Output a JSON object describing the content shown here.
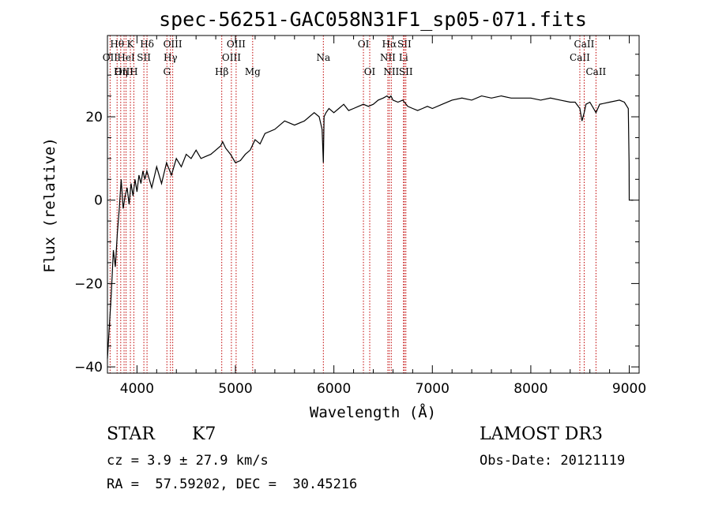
{
  "chart_data": {
    "type": "line",
    "title": "spec-56251-GAC058N31F1_sp05-071.fits",
    "xlabel": "Wavelength (Å)",
    "ylabel": "Flux (relative)",
    "xlim": [
      3700,
      9100
    ],
    "ylim": [
      -41.5,
      39.5
    ],
    "x_ticks": [
      {
        "value": 4000,
        "label": "4000"
      },
      {
        "value": 5000,
        "label": "5000"
      },
      {
        "value": 6000,
        "label": "6000"
      },
      {
        "value": 7000,
        "label": "7000"
      },
      {
        "value": 8000,
        "label": "8000"
      },
      {
        "value": 9000,
        "label": "9000"
      }
    ],
    "y_ticks": [
      {
        "value": 20,
        "label": "20"
      },
      {
        "value": 0,
        "label": "0"
      },
      {
        "value": -20,
        "label": "−20"
      },
      {
        "value": -40,
        "label": "−40"
      }
    ],
    "grid": false,
    "series": [
      {
        "color": "#000000",
        "x": [
          3700,
          3720,
          3740,
          3760,
          3780,
          3800,
          3820,
          3840,
          3860,
          3880,
          3900,
          3920,
          3940,
          3960,
          3980,
          4000,
          4020,
          4040,
          4060,
          4080,
          4100,
          4150,
          4200,
          4250,
          4300,
          4350,
          4400,
          4450,
          4500,
          4550,
          4600,
          4650,
          4700,
          4750,
          4800,
          4850,
          4870,
          4900,
          4950,
          5000,
          5050,
          5100,
          5150,
          5200,
          5250,
          5300,
          5400,
          5500,
          5600,
          5700,
          5800,
          5850,
          5880,
          5893,
          5900,
          5920,
          5950,
          6000,
          6050,
          6100,
          6150,
          6200,
          6250,
          6300,
          6350,
          6400,
          6450,
          6500,
          6540,
          6563,
          6580,
          6600,
          6650,
          6700,
          6750,
          6800,
          6850,
          6900,
          6950,
          7000,
          7100,
          7200,
          7300,
          7400,
          7500,
          7600,
          7700,
          7800,
          7900,
          8000,
          8100,
          8200,
          8300,
          8400,
          8450,
          8498,
          8520,
          8542,
          8560,
          8600,
          8662,
          8700,
          8800,
          8900,
          8950,
          8990,
          8998,
          9000,
          9002,
          9040
        ],
        "y": [
          -38,
          -30,
          -22,
          -12,
          -16,
          -8,
          -2,
          5,
          -2,
          1,
          3,
          -1,
          4,
          1,
          5,
          2,
          6,
          4,
          7,
          5,
          7,
          3,
          8,
          4,
          9,
          6,
          10,
          8,
          11,
          10,
          12,
          10,
          10.5,
          11,
          12,
          13,
          14,
          12.5,
          11,
          9,
          9.5,
          11,
          12,
          14.5,
          13.5,
          16,
          17,
          19,
          18,
          19,
          21,
          20,
          17,
          9,
          20,
          21,
          22,
          21,
          22,
          23,
          21.5,
          22,
          22.5,
          23,
          22.5,
          23,
          24,
          24.5,
          25,
          24.5,
          25,
          24,
          23.5,
          24,
          22.5,
          22,
          21.5,
          22,
          22.5,
          22,
          23,
          24,
          24.5,
          24,
          25,
          24.5,
          25,
          24.5,
          24.5,
          24.5,
          24,
          24.5,
          24,
          23.5,
          23.5,
          22,
          19,
          21,
          23,
          23.5,
          21,
          23,
          23.5,
          24,
          23.5,
          22,
          9,
          0,
          0,
          0
        ]
      }
    ],
    "line_markers": [
      {
        "wavelength": 3727,
        "label": "OII",
        "row": 1
      },
      {
        "wavelength": 3798,
        "label": "Hθ",
        "row": 0
      },
      {
        "wavelength": 3835,
        "label": "Hη",
        "row": 2
      },
      {
        "wavelength": 3869,
        "label": "OIII",
        "row": 2
      },
      {
        "wavelength": 3889,
        "label": "HeI",
        "row": 1
      },
      {
        "wavelength": 3933,
        "label": "K",
        "row": 0
      },
      {
        "wavelength": 3968,
        "label": "H",
        "row": 2
      },
      {
        "wavelength": 4070,
        "label": "SII",
        "row": 1
      },
      {
        "wavelength": 4102,
        "label": "Hδ",
        "row": 0
      },
      {
        "wavelength": 4304,
        "label": "G",
        "row": 2
      },
      {
        "wavelength": 4340,
        "label": "Hγ",
        "row": 1
      },
      {
        "wavelength": 4363,
        "label": "OIII",
        "row": 0
      },
      {
        "wavelength": 4861,
        "label": "Hβ",
        "row": 2
      },
      {
        "wavelength": 4959,
        "label": "OIII",
        "row": 1
      },
      {
        "wavelength": 5007,
        "label": "OIII",
        "row": 0
      },
      {
        "wavelength": 5175,
        "label": "Mg",
        "row": 2
      },
      {
        "wavelength": 5893,
        "label": "Na",
        "row": 1
      },
      {
        "wavelength": 6300,
        "label": "OI",
        "row": 0
      },
      {
        "wavelength": 6364,
        "label": "OI",
        "row": 2
      },
      {
        "wavelength": 6548,
        "label": "NII",
        "row": 1
      },
      {
        "wavelength": 6563,
        "label": "Hα",
        "row": 0
      },
      {
        "wavelength": 6583,
        "label": "NII",
        "row": 2
      },
      {
        "wavelength": 6707,
        "label": "Li",
        "row": 1
      },
      {
        "wavelength": 6716,
        "label": "SII",
        "row": 0
      },
      {
        "wavelength": 6731,
        "label": "SII",
        "row": 2
      },
      {
        "wavelength": 8498,
        "label": "CaII",
        "row": 1
      },
      {
        "wavelength": 8542,
        "label": "CaII",
        "row": 0
      },
      {
        "wavelength": 8662,
        "label": "CaII",
        "row": 2
      }
    ]
  },
  "info": {
    "class": "STAR",
    "subclass": "K7",
    "survey": "LAMOST DR3",
    "redshift": "cz = 3.9 ± 27.9 km/s",
    "obs_date": "Obs-Date: 20121119",
    "coords": "RA =  57.59202, DEC =  30.45216"
  },
  "colors": {
    "marker_line": "#c00000",
    "spectrum": "#000000",
    "axes": "#000000"
  }
}
